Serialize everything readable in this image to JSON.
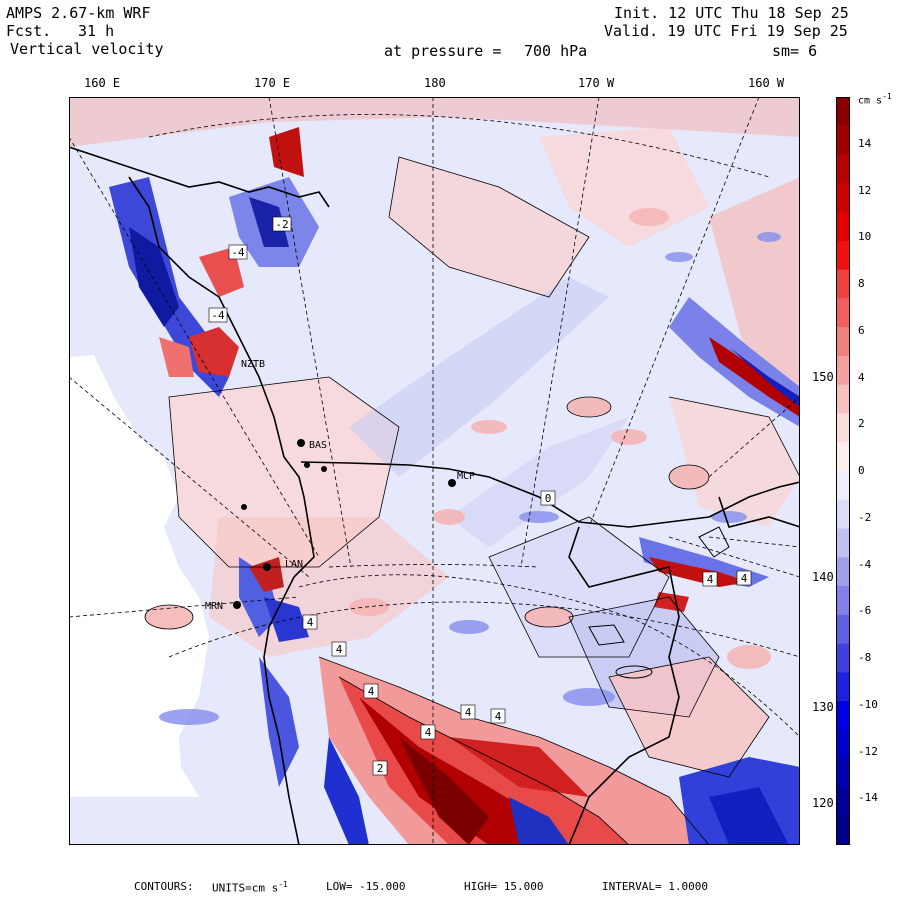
{
  "header": {
    "model": "AMPS 2.67-km WRF",
    "fcst_label": "Fcst.",
    "fcst_value": "31 h",
    "field": "Vertical velocity",
    "init": "Init. 12 UTC Thu 18 Sep 25",
    "valid": "Valid. 19 UTC Fri 19 Sep 25",
    "pressure_label": "at pressure =",
    "pressure_value": "700 hPa",
    "smooth": "sm= 6"
  },
  "map": {
    "top_ticks": [
      "160 E",
      "170 E",
      "180",
      "170 W",
      "160 W"
    ],
    "right_ticks": [
      "150 W",
      "140 W",
      "130 W",
      "120 W"
    ],
    "stations": [
      "BAS",
      "MCP",
      "MRN",
      "LAN",
      "NZTB"
    ],
    "contour_labels": [
      "4",
      "4",
      "4",
      "4",
      "4",
      "4",
      "4",
      "4",
      "-4",
      "-4",
      "0",
      "-2",
      "2"
    ]
  },
  "colorbar": {
    "unit": "cm s",
    "unit_exp": "-1",
    "labels": [
      "14",
      "12",
      "10",
      "8",
      "6",
      "4",
      "2",
      "0",
      "-2",
      "-4",
      "-6",
      "-8",
      "-10",
      "-12",
      "-14"
    ],
    "colors_top_to_bottom": [
      "#8a0000",
      "#a00000",
      "#b80000",
      "#cc0000",
      "#e00000",
      "#f01010",
      "#f04040",
      "#f06060",
      "#f08080",
      "#f4a0a0",
      "#f6c0c0",
      "#f9dcdc",
      "#fdeeee",
      "#eeeeff",
      "#dcdcf9",
      "#c0c0f2",
      "#a0a0ea",
      "#8080e6",
      "#6060e0",
      "#4040e0",
      "#2020e0",
      "#0000e0",
      "#0000c8",
      "#0000b0",
      "#000098",
      "#00008a"
    ]
  },
  "footer": {
    "contours": "CONTOURS:",
    "units_label": "UNITS=cm s",
    "units_exp": "-1",
    "low": "LOW= -15.000",
    "high": "HIGH= 15.000",
    "interval": "INTERVAL= 1.0000"
  }
}
